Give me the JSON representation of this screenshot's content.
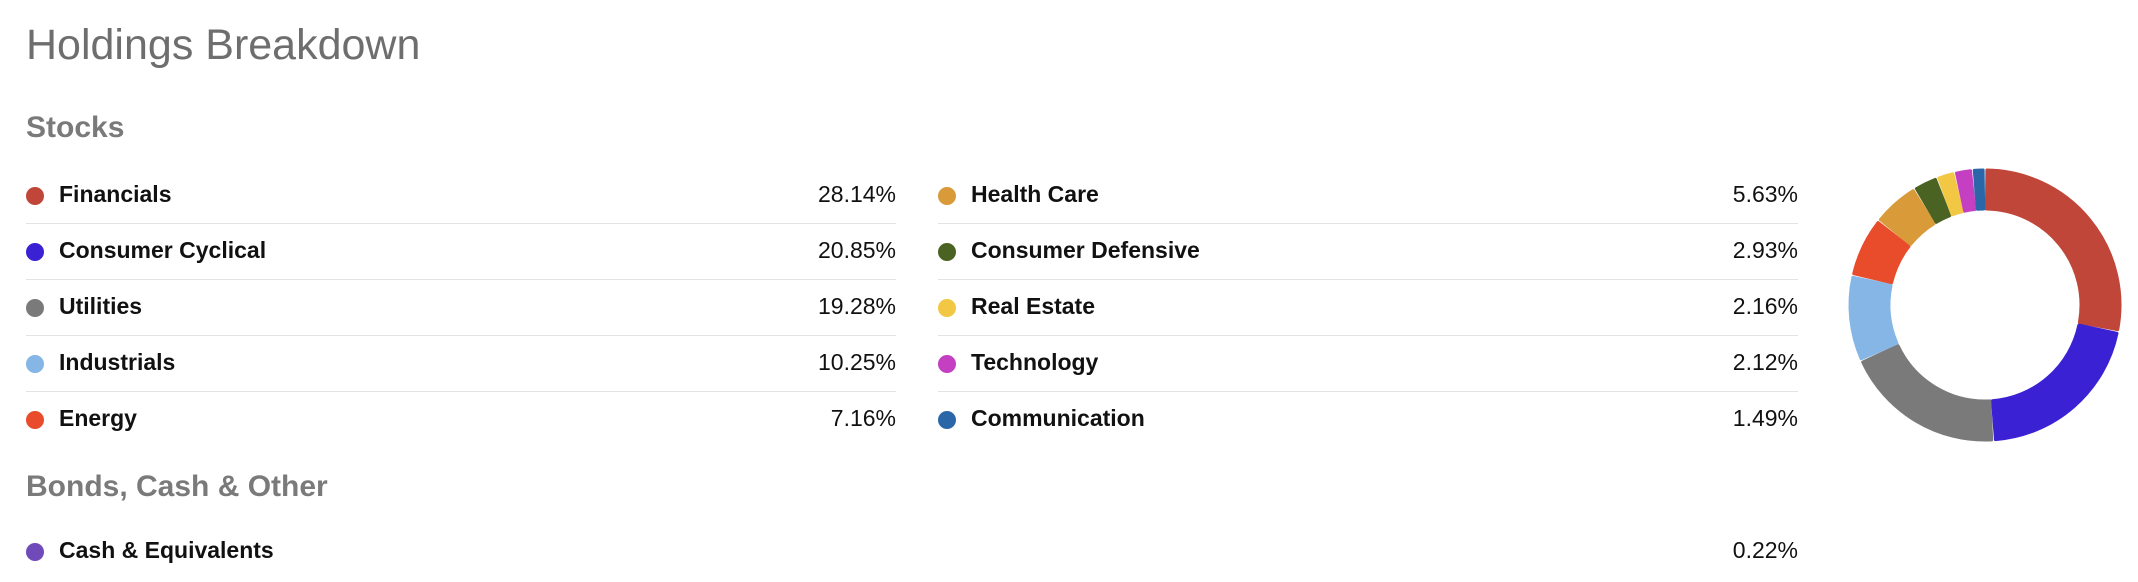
{
  "page": {
    "title": "Holdings Breakdown"
  },
  "stocks": {
    "title": "Stocks",
    "left": [
      {
        "label": "Financials",
        "value": "28.14%",
        "color": "#c0463a",
        "pct": 28.14
      },
      {
        "label": "Consumer Cyclical",
        "value": "20.85%",
        "color": "#3a21d3",
        "pct": 20.85
      },
      {
        "label": "Utilities",
        "value": "19.28%",
        "color": "#7a7a7a",
        "pct": 19.28
      },
      {
        "label": "Industrials",
        "value": "10.25%",
        "color": "#85b6e6",
        "pct": 10.25
      },
      {
        "label": "Energy",
        "value": "7.16%",
        "color": "#e84c2a",
        "pct": 7.16
      }
    ],
    "right": [
      {
        "label": "Health Care",
        "value": "5.63%",
        "color": "#d99a3a",
        "pct": 5.63
      },
      {
        "label": "Consumer Defensive",
        "value": "2.93%",
        "color": "#4a6322",
        "pct": 2.93
      },
      {
        "label": "Real Estate",
        "value": "2.16%",
        "color": "#f2c744",
        "pct": 2.16
      },
      {
        "label": "Technology",
        "value": "2.12%",
        "color": "#c43fc2",
        "pct": 2.12
      },
      {
        "label": "Communication",
        "value": "1.49%",
        "color": "#2a66a8",
        "pct": 1.49
      }
    ]
  },
  "other": {
    "title": "Bonds, Cash & Other",
    "items": [
      {
        "label": "Cash & Equivalents",
        "value": "0.22%",
        "color": "#6f4ab8",
        "pct": 0.22
      }
    ]
  }
}
